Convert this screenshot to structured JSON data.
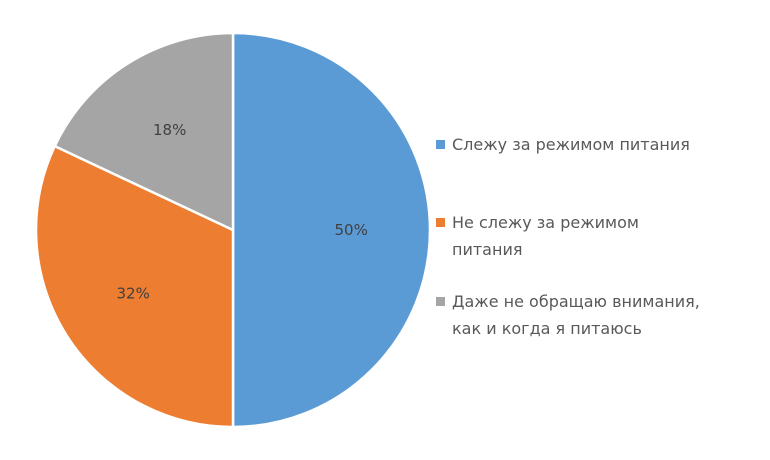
{
  "chart_data": {
    "type": "pie",
    "title": "",
    "categories": [
      "Слежу за режимом питания",
      "Не слежу за режимом питания",
      "Даже не обращаю внимания, как и когда я питаюсь"
    ],
    "values": [
      50,
      32,
      18
    ],
    "value_labels": [
      "50%",
      "32%",
      "18%"
    ],
    "colors": [
      "#5B9BD5",
      "#ED7D31",
      "#A5A5A5"
    ],
    "start_angle_deg": 0,
    "direction": "clockwise",
    "legend_position": "right"
  },
  "legend": {
    "items": [
      {
        "lines": [
          "Слежу за режимом питания"
        ],
        "color": "#5B9BD5"
      },
      {
        "lines": [
          "Не слежу за режимом",
          "питания"
        ],
        "color": "#ED7D31"
      },
      {
        "lines": [
          "Даже не обращаю внимания,",
          "как и когда я питаюсь"
        ],
        "color": "#A5A5A5"
      }
    ]
  }
}
